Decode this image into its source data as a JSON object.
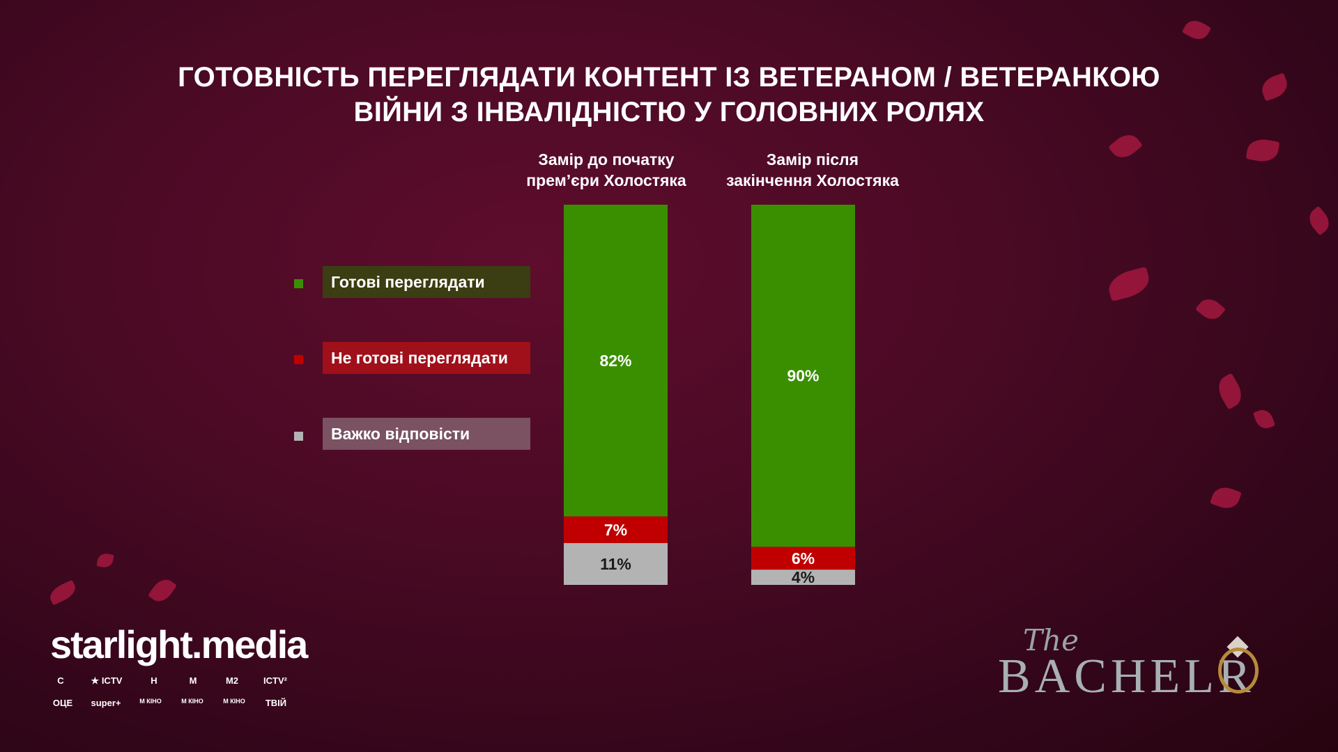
{
  "title_line1": "ГОТОВНІСТЬ ПЕРЕГЛЯДАТИ КОНТЕНТ ІЗ ВЕТЕРАНОМ / ВЕТЕРАНКОЮ",
  "title_line2": "ВІЙНИ З ІНВАЛІДНІСТЮ У ГОЛОВНИХ РОЛЯХ",
  "colors": {
    "ready": "#3a8f00",
    "not_ready": "#c00000",
    "hard": "#b3b3b3",
    "legend_ready_bg": "#3b3d12",
    "legend_not_ready_bg": "#a0101a",
    "legend_hard_bg": "#7a5262"
  },
  "chart_data": {
    "type": "bar",
    "stacked": true,
    "normalized": true,
    "categories": [
      "Замір до початку прем’єри Холостяка",
      "Замір після закінчення Холостяка"
    ],
    "category_lines": [
      [
        "Замір до початку",
        "прем’єри Холостяка"
      ],
      [
        "Замір після",
        "закінчення Холостяка"
      ]
    ],
    "series": [
      {
        "name": "Готові переглядати",
        "values": [
          82,
          90
        ],
        "labels": [
          "82%",
          "90%"
        ]
      },
      {
        "name": "Не готові переглядати",
        "values": [
          7,
          6
        ],
        "labels": [
          "7%",
          "6%"
        ]
      },
      {
        "name": "Важко відповісти",
        "values": [
          11,
          4
        ],
        "labels": [
          "11%",
          "4%"
        ]
      }
    ],
    "legend_position": "left",
    "grid": false
  },
  "branding": {
    "company": "starlight.media",
    "channels_row1": [
      "С",
      "★ ICTV",
      "Н",
      "М",
      "М2",
      "ICTV²"
    ],
    "channels_row2": [
      "ОЦЕ",
      "super+",
      "М КІНО",
      "М КІНО",
      "М КІНО",
      "ТВІЙ"
    ],
    "show_the": "The",
    "show_name": "BACHELR"
  }
}
